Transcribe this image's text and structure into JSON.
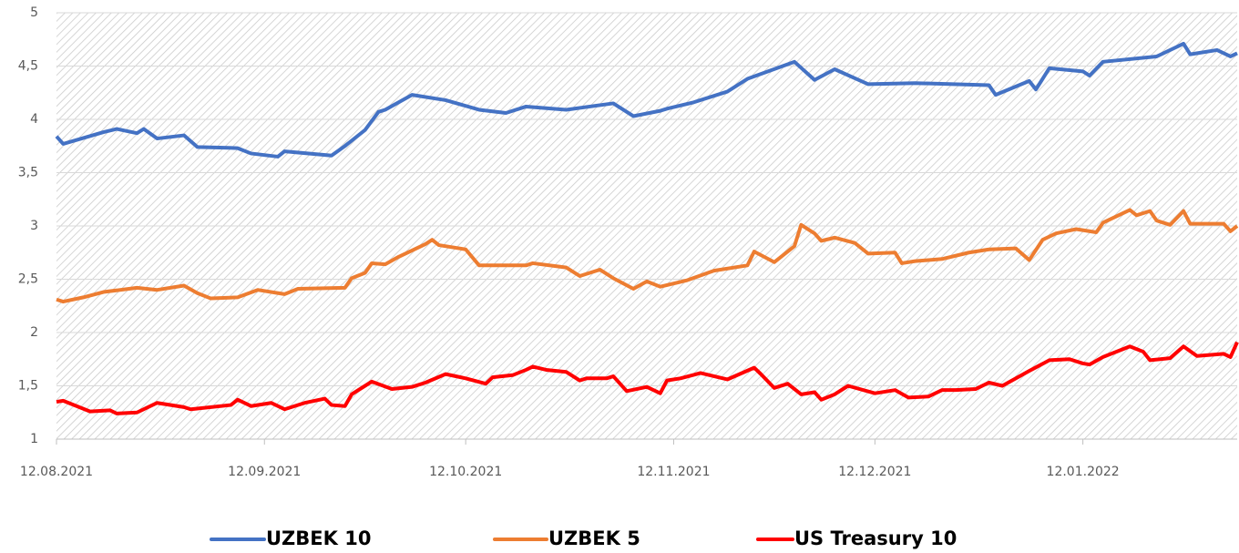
{
  "chart_data": {
    "type": "line",
    "xlim": [
      "12.08.2021",
      "04.02.2022"
    ],
    "xticks": [
      "12.08.2021",
      "12.09.2021",
      "12.10.2021",
      "12.11.2021",
      "12.12.2021",
      "12.01.2022"
    ],
    "ylim": [
      1,
      5
    ],
    "yticks": [
      1,
      {
        "value": 1.5,
        "label": "1,5"
      },
      2,
      {
        "value": 2.5,
        "label": "2,5"
      },
      3,
      {
        "value": 3.5,
        "label": "3,5"
      },
      4,
      {
        "value": 4.5,
        "label": "4,5"
      },
      5
    ],
    "grid": true,
    "legend": "bottom",
    "series": [
      {
        "name": "UZBEK 10",
        "color": "#4472c4",
        "x": [
          "12.08.2021",
          "13.08.2021",
          "19.08.2021",
          "21.08.2021",
          "24.08.2021",
          "25.08.2021",
          "27.08.2021",
          "31.08.2021",
          "02.09.2021",
          "08.09.2021",
          "10.09.2021",
          "14.09.2021",
          "15.09.2021",
          "22.09.2021",
          "24.09.2021",
          "27.09.2021",
          "29.09.2021",
          "30.09.2021",
          "04.10.2021",
          "09.10.2021",
          "14.10.2021",
          "18.10.2021",
          "21.10.2021",
          "27.10.2021",
          "03.11.2021",
          "06.11.2021",
          "10.11.2021",
          "11.11.2021",
          "15.11.2021",
          "20.11.2021",
          "23.11.2021",
          "30.11.2021",
          "03.12.2021",
          "06.12.2021",
          "11.12.2021",
          "18.12.2021",
          "29.12.2021",
          "30.12.2021",
          "04.01.2022",
          "05.01.2022",
          "07.01.2022",
          "12.01.2022",
          "13.01.2022",
          "15.01.2022",
          "23.01.2022",
          "27.01.2022",
          "28.01.2022",
          "01.02.2022",
          "03.02.2022",
          "04.02.2022"
        ],
        "values": [
          3.84,
          3.77,
          3.88,
          3.91,
          3.87,
          3.91,
          3.82,
          3.85,
          3.74,
          3.73,
          3.68,
          3.65,
          3.7,
          3.66,
          3.75,
          3.9,
          4.07,
          4.09,
          4.23,
          4.18,
          4.09,
          4.06,
          4.12,
          4.09,
          4.15,
          4.03,
          4.08,
          4.1,
          4.16,
          4.26,
          4.38,
          4.54,
          4.37,
          4.47,
          4.33,
          4.34,
          4.32,
          4.23,
          4.36,
          4.28,
          4.48,
          4.45,
          4.41,
          4.54,
          4.59,
          4.71,
          4.61,
          4.65,
          4.59,
          4.62
        ]
      },
      {
        "name": "UZBEK 5",
        "color": "#ed7d31",
        "x": [
          "12.08.2021",
          "13.08.2021",
          "16.08.2021",
          "19.08.2021",
          "24.08.2021",
          "27.08.2021",
          "31.08.2021",
          "02.09.2021",
          "04.09.2021",
          "08.09.2021",
          "11.09.2021",
          "15.09.2021",
          "17.09.2021",
          "24.09.2021",
          "25.09.2021",
          "27.09.2021",
          "28.09.2021",
          "30.09.2021",
          "02.10.2021",
          "06.10.2021",
          "07.10.2021",
          "08.10.2021",
          "12.10.2021",
          "14.10.2021",
          "21.10.2021",
          "22.10.2021",
          "27.10.2021",
          "29.10.2021",
          "01.11.2021",
          "03.11.2021",
          "06.11.2021",
          "08.11.2021",
          "10.11.2021",
          "14.11.2021",
          "18.11.2021",
          "23.11.2021",
          "24.11.2021",
          "27.11.2021",
          "30.11.2021",
          "01.12.2021",
          "03.12.2021",
          "04.12.2021",
          "06.12.2021",
          "09.12.2021",
          "11.12.2021",
          "15.12.2021",
          "16.12.2021",
          "18.12.2021",
          "22.12.2021",
          "26.12.2021",
          "29.12.2021",
          "02.01.2022",
          "04.01.2022",
          "06.01.2022",
          "08.01.2022",
          "11.01.2022",
          "14.01.2022",
          "15.01.2022",
          "19.01.2022",
          "20.01.2022",
          "22.01.2022",
          "23.01.2022",
          "25.01.2022",
          "27.01.2022",
          "28.01.2022",
          "02.02.2022",
          "03.02.2022",
          "04.02.2022"
        ],
        "values": [
          2.31,
          2.29,
          2.33,
          2.38,
          2.42,
          2.4,
          2.44,
          2.37,
          2.32,
          2.33,
          2.4,
          2.36,
          2.41,
          2.42,
          2.51,
          2.56,
          2.65,
          2.64,
          2.71,
          2.83,
          2.87,
          2.82,
          2.78,
          2.63,
          2.63,
          2.65,
          2.61,
          2.53,
          2.59,
          2.51,
          2.41,
          2.48,
          2.43,
          2.49,
          2.58,
          2.63,
          2.76,
          2.66,
          2.81,
          3.01,
          2.93,
          2.86,
          2.89,
          2.84,
          2.74,
          2.75,
          2.65,
          2.67,
          2.69,
          2.75,
          2.78,
          2.79,
          2.68,
          2.87,
          2.93,
          2.97,
          2.94,
          3.03,
          3.15,
          3.1,
          3.14,
          3.05,
          3.01,
          3.14,
          3.02,
          3.02,
          2.95,
          3.0
        ]
      },
      {
        "name": "US Treasury 10",
        "color": "#ff0000",
        "x": [
          "12.08.2021",
          "13.08.2021",
          "17.08.2021",
          "20.08.2021",
          "21.08.2021",
          "24.08.2021",
          "27.08.2021",
          "31.08.2021",
          "01.09.2021",
          "07.09.2021",
          "08.09.2021",
          "10.09.2021",
          "13.09.2021",
          "15.09.2021",
          "18.09.2021",
          "21.09.2021",
          "22.09.2021",
          "24.09.2021",
          "25.09.2021",
          "27.09.2021",
          "28.09.2021",
          "01.10.2021",
          "04.10.2021",
          "06.10.2021",
          "09.10.2021",
          "12.10.2021",
          "15.10.2021",
          "16.10.2021",
          "19.10.2021",
          "21.10.2021",
          "22.10.2021",
          "24.10.2021",
          "27.10.2021",
          "29.10.2021",
          "30.10.2021",
          "02.11.2021",
          "03.11.2021",
          "05.11.2021",
          "08.11.2021",
          "10.11.2021",
          "11.11.2021",
          "13.11.2021",
          "16.11.2021",
          "20.11.2021",
          "24.11.2021",
          "25.11.2021",
          "27.11.2021",
          "29.11.2021",
          "01.12.2021",
          "03.12.2021",
          "04.12.2021",
          "06.12.2021",
          "08.12.2021",
          "12.12.2021",
          "15.12.2021",
          "17.12.2021",
          "20.12.2021",
          "22.12.2021",
          "24.12.2021",
          "27.12.2021",
          "29.12.2021",
          "31.12.2021",
          "04.01.2022",
          "07.01.2022",
          "10.01.2022",
          "12.01.2022",
          "13.01.2022",
          "15.01.2022",
          "19.01.2022",
          "21.01.2022",
          "22.01.2022",
          "25.01.2022",
          "27.01.2022",
          "29.01.2022",
          "02.02.2022",
          "03.02.2022",
          "04.02.2022"
        ],
        "values": [
          1.35,
          1.36,
          1.26,
          1.27,
          1.24,
          1.25,
          1.34,
          1.3,
          1.28,
          1.32,
          1.37,
          1.31,
          1.34,
          1.28,
          1.34,
          1.38,
          1.32,
          1.31,
          1.42,
          1.5,
          1.54,
          1.47,
          1.49,
          1.53,
          1.61,
          1.57,
          1.52,
          1.58,
          1.6,
          1.65,
          1.68,
          1.65,
          1.63,
          1.55,
          1.57,
          1.57,
          1.59,
          1.45,
          1.49,
          1.43,
          1.55,
          1.57,
          1.62,
          1.56,
          1.67,
          1.61,
          1.48,
          1.52,
          1.42,
          1.44,
          1.37,
          1.42,
          1.5,
          1.43,
          1.46,
          1.39,
          1.4,
          1.46,
          1.46,
          1.47,
          1.53,
          1.5,
          1.64,
          1.74,
          1.75,
          1.71,
          1.7,
          1.77,
          1.87,
          1.82,
          1.74,
          1.76,
          1.87,
          1.78,
          1.8,
          1.77,
          1.91
        ]
      }
    ]
  }
}
